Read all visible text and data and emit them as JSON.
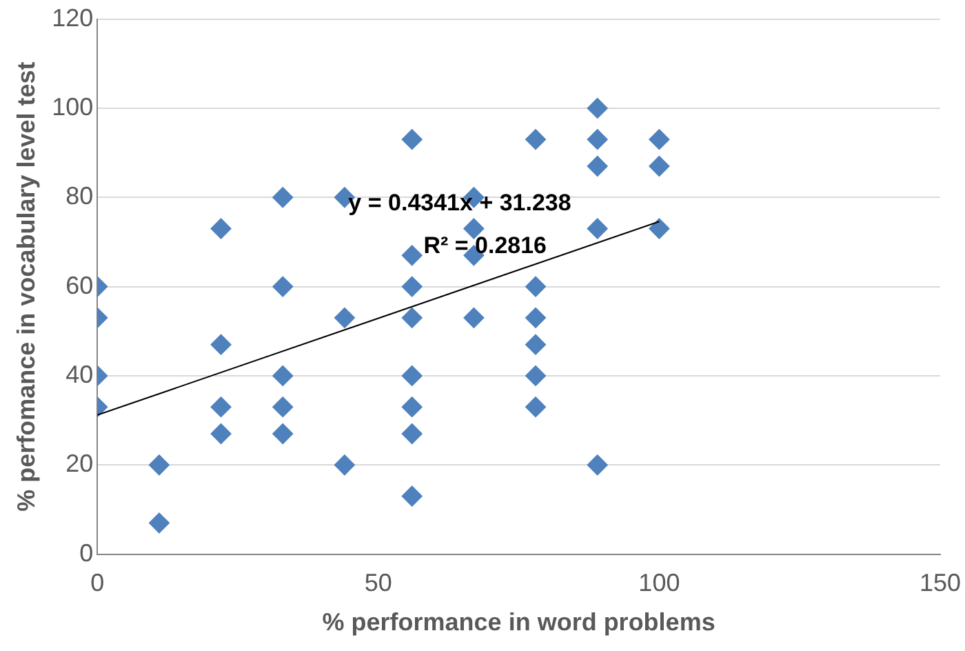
{
  "chart_data": {
    "type": "scatter",
    "xlabel": "% performance in word problems",
    "ylabel": "% perfomance in vocabulary level test",
    "xlim": [
      0,
      150
    ],
    "xticks": [
      0,
      50,
      100,
      150
    ],
    "ylim": [
      0,
      120
    ],
    "yticks": [
      0,
      20,
      40,
      60,
      80,
      100,
      120
    ],
    "grid": "y",
    "legend": false,
    "marker": "diamond",
    "annotations": [
      "y = 0.4341x + 31.238",
      "R² = 0.2816"
    ],
    "series": [
      {
        "type": "scatter",
        "color": "#4f81bd",
        "x": [
          0,
          0,
          0,
          0,
          11,
          11,
          22,
          22,
          22,
          22,
          33,
          33,
          33,
          33,
          33,
          44,
          44,
          44,
          56,
          56,
          56,
          56,
          56,
          56,
          56,
          56,
          67,
          67,
          67,
          67,
          78,
          78,
          78,
          78,
          78,
          78,
          89,
          89,
          89,
          89,
          89,
          100,
          100,
          100
        ],
        "values": [
          60,
          53,
          40,
          33,
          20,
          7,
          73,
          47,
          33,
          27,
          80,
          60,
          40,
          33,
          27,
          80,
          53,
          20,
          93,
          67,
          60,
          53,
          40,
          33,
          27,
          13,
          80,
          73,
          67,
          53,
          93,
          60,
          53,
          47,
          40,
          33,
          100,
          93,
          87,
          73,
          20,
          93,
          87,
          73
        ]
      },
      {
        "type": "line",
        "color": "#000000",
        "marker": "none",
        "x": [
          0,
          100
        ],
        "values": [
          31.2,
          74.6
        ]
      }
    ]
  }
}
